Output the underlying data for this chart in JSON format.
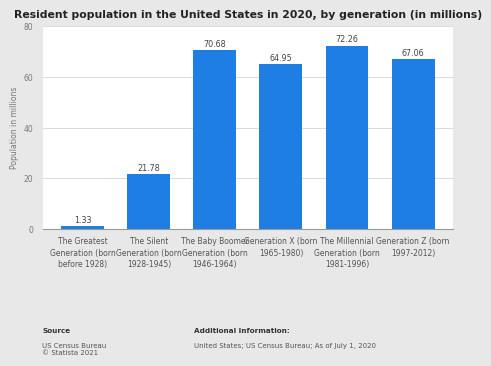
{
  "title": "Resident population in the United States in 2020, by generation (in millions)",
  "categories": [
    "The Greatest\nGeneration (born\nbefore 1928)",
    "The Silent\nGeneration (born\n1928-1945)",
    "The Baby Boomer\nGeneration (born\n1946-1964)",
    "Generation X (born\n1965-1980)",
    "The Millennial\nGeneration (born\n1981-1996)",
    "Generation Z (born\n1997-2012)"
  ],
  "values": [
    1.33,
    21.78,
    70.68,
    64.95,
    72.26,
    67.06
  ],
  "bar_color": "#1e7ee4",
  "ylabel": "Population in millions",
  "ylim": [
    0,
    80
  ],
  "yticks": [
    0,
    20,
    40,
    60,
    80
  ],
  "background_color": "#e8e8e8",
  "plot_bg_color": "#ffffff",
  "title_fontsize": 7.8,
  "label_fontsize": 5.5,
  "value_fontsize": 5.8,
  "ylabel_fontsize": 5.5,
  "source_bold": "Source",
  "source_normal": "US Census Bureau\n© Statista 2021",
  "additional_bold": "Additional Information:",
  "additional_normal": "United States; US Census Bureau; As of July 1, 2020"
}
